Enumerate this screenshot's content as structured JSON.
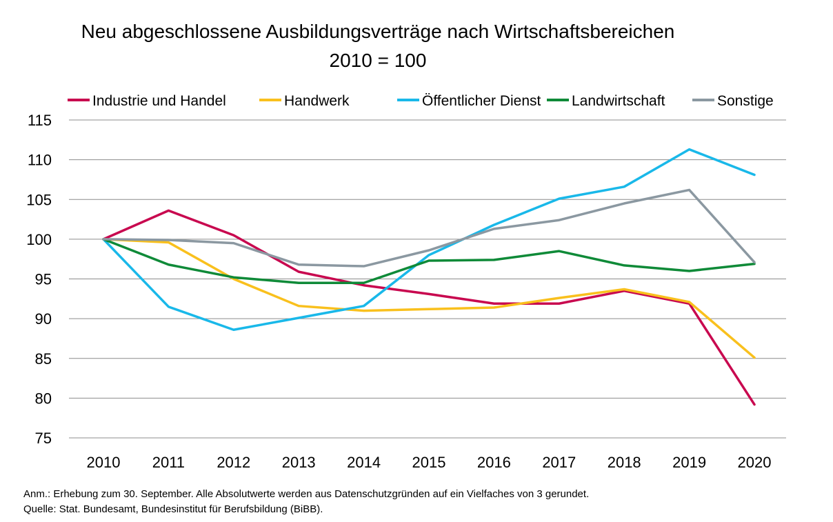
{
  "chart_data": {
    "type": "line",
    "title": "Neu abgeschlossene Ausbildungsverträge nach Wirtschaftsbereichen",
    "subtitle": "2010 = 100",
    "x": [
      "2010",
      "2011",
      "2012",
      "2013",
      "2014",
      "2015",
      "2016",
      "2017",
      "2018",
      "2019",
      "2020"
    ],
    "ylim": [
      75,
      115
    ],
    "yticks": [
      "115",
      "110",
      "105",
      "100",
      "95",
      "90",
      "85",
      "80",
      "75"
    ],
    "grid": true,
    "legend_position": "top",
    "series": [
      {
        "name": "Industrie und Handel",
        "color": "#c8084f",
        "values": [
          100,
          103.6,
          100.5,
          95.9,
          94.2,
          93.1,
          91.9,
          91.9,
          93.5,
          91.9,
          79.2
        ]
      },
      {
        "name": "Handwerk",
        "color": "#f9c01d",
        "values": [
          100,
          99.6,
          95.0,
          91.6,
          91.0,
          91.2,
          91.4,
          92.6,
          93.7,
          92.1,
          85.1
        ]
      },
      {
        "name": "Öffentlicher Dienst",
        "color": "#19b8e9",
        "values": [
          100,
          91.5,
          88.6,
          90.1,
          91.6,
          98.0,
          101.8,
          105.1,
          106.6,
          111.3,
          108.1
        ]
      },
      {
        "name": "Landwirtschaft",
        "color": "#0f8a38",
        "values": [
          100,
          96.8,
          95.2,
          94.5,
          94.5,
          97.3,
          97.4,
          98.5,
          96.7,
          96.0,
          96.9
        ]
      },
      {
        "name": "Sonstige",
        "color": "#8b98a1",
        "values": [
          100,
          99.9,
          99.5,
          96.8,
          96.6,
          98.6,
          101.3,
          102.4,
          104.5,
          106.2,
          97.1
        ]
      }
    ]
  },
  "notes": {
    "line1": "Anm.: Erhebung zum 30. September. Alle Absolutwerte werden aus Datenschutzgründen auf ein Vielfaches von 3 gerundet.",
    "line2": "Quelle: Stat. Bundesamt, Bundesinstitut für Berufsbildung (BiBB)."
  }
}
